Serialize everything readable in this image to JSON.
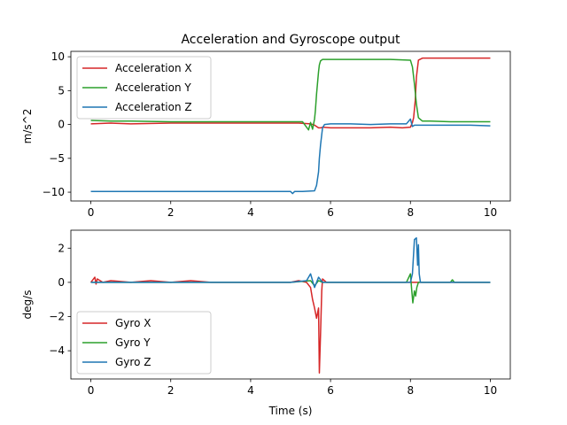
{
  "figure": {
    "title": "Acceleration and Gyroscope output",
    "xlabel": "Time (s)"
  },
  "chart_data": [
    {
      "type": "line",
      "title": "Acceleration and Gyroscope output",
      "xlabel": "",
      "ylabel": "m/s^2",
      "xlim": [
        -0.5,
        10.5
      ],
      "ylim": [
        -11.3,
        10.8
      ],
      "xticks": [
        0,
        2,
        4,
        6,
        8,
        10
      ],
      "yticks": [
        -10,
        -5,
        0,
        5,
        10
      ],
      "grid": false,
      "legend": "top-left",
      "series": [
        {
          "name": "Acceleration X",
          "color": "#d62728",
          "x": [
            0,
            0.5,
            1,
            2,
            3,
            4,
            4.5,
            5,
            5.2,
            5.5,
            5.6,
            5.65,
            5.7,
            5.75,
            5.8,
            6,
            6.5,
            7,
            7.5,
            7.8,
            8.0,
            8.05,
            8.08,
            8.12,
            8.15,
            8.2,
            8.3,
            8.5,
            9,
            9.5,
            10
          ],
          "y": [
            0.1,
            0.2,
            0.1,
            0.2,
            0.2,
            0.2,
            0.2,
            0.2,
            0.2,
            0.1,
            -0.1,
            -0.3,
            -0.5,
            -0.5,
            -0.4,
            -0.5,
            -0.5,
            -0.5,
            -0.4,
            -0.5,
            -0.4,
            0.3,
            1.0,
            3.5,
            7.0,
            9.5,
            9.8,
            9.8,
            9.8,
            9.8,
            9.8
          ]
        },
        {
          "name": "Acceleration Y",
          "color": "#2ca02c",
          "x": [
            0,
            0.5,
            1,
            2,
            3,
            4,
            4.5,
            5,
            5.3,
            5.45,
            5.5,
            5.55,
            5.6,
            5.62,
            5.65,
            5.68,
            5.7,
            5.72,
            5.75,
            5.8,
            6,
            6.5,
            7,
            7.5,
            8.0,
            8.05,
            8.1,
            8.15,
            8.2,
            8.3,
            8.5,
            9,
            9.5,
            10
          ],
          "y": [
            0.6,
            0.5,
            0.5,
            0.4,
            0.4,
            0.4,
            0.4,
            0.4,
            0.4,
            -0.8,
            0.3,
            -0.7,
            0.8,
            2.0,
            4.5,
            6.5,
            7.8,
            8.8,
            9.4,
            9.6,
            9.6,
            9.6,
            9.6,
            9.6,
            9.5,
            8.5,
            6.0,
            3.0,
            1.0,
            0.5,
            0.5,
            0.4,
            0.4,
            0.4
          ]
        },
        {
          "name": "Acceleration Z",
          "color": "#1f77b4",
          "x": [
            0,
            0.5,
            1,
            1.5,
            2,
            2.5,
            3,
            3.5,
            4,
            4.5,
            5,
            5.05,
            5.1,
            5.3,
            5.6,
            5.65,
            5.7,
            5.72,
            5.75,
            5.78,
            5.8,
            5.85,
            6,
            6.5,
            7,
            7.5,
            7.9,
            8.0,
            8.05,
            8.1,
            8.2,
            8.5,
            9,
            9.5,
            10
          ],
          "y": [
            -9.9,
            -9.9,
            -9.9,
            -9.9,
            -9.9,
            -9.9,
            -9.9,
            -9.9,
            -9.9,
            -9.9,
            -9.9,
            -10.2,
            -9.9,
            -9.9,
            -9.8,
            -9.0,
            -7.0,
            -5.0,
            -3.0,
            -1.5,
            -0.5,
            0.0,
            0.1,
            0.1,
            0.0,
            0.1,
            0.1,
            0.8,
            -0.3,
            -0.1,
            -0.1,
            -0.1,
            -0.1,
            -0.1,
            -0.2
          ]
        }
      ]
    },
    {
      "type": "line",
      "title": "",
      "xlabel": "Time (s)",
      "ylabel": "deg/s",
      "xlim": [
        -0.5,
        10.5
      ],
      "ylim": [
        -5.65,
        3.05
      ],
      "xticks": [
        0,
        2,
        4,
        6,
        8,
        10
      ],
      "yticks": [
        -4,
        -2,
        0,
        2
      ],
      "grid": false,
      "legend": "bottom-left",
      "series": [
        {
          "name": "Gyro X",
          "color": "#d62728",
          "x": [
            0,
            0.1,
            0.13,
            0.16,
            0.3,
            0.5,
            1,
            1.5,
            2,
            2.5,
            3,
            4,
            5,
            5.2,
            5.4,
            5.5,
            5.55,
            5.6,
            5.65,
            5.7,
            5.72,
            5.75,
            5.78,
            5.8,
            5.9,
            6,
            7,
            8,
            8.2,
            9,
            10
          ],
          "y": [
            0,
            0.3,
            -0.1,
            0.2,
            0,
            0.1,
            0,
            0.1,
            0,
            0.1,
            0,
            0,
            0,
            0.1,
            0,
            -0.3,
            -1.0,
            -1.5,
            -2.1,
            -1.5,
            -5.3,
            -3.0,
            -0.5,
            0.2,
            0,
            0,
            0,
            0,
            0,
            0,
            0
          ]
        },
        {
          "name": "Gyro Y",
          "color": "#2ca02c",
          "x": [
            0,
            1,
            2,
            3,
            4,
            5,
            5.5,
            5.6,
            5.7,
            5.8,
            6,
            7,
            7.9,
            8.0,
            8.03,
            8.06,
            8.1,
            8.13,
            8.16,
            8.2,
            8.3,
            8.5,
            9,
            9.05,
            9.1,
            10
          ],
          "y": [
            0,
            0,
            0,
            0,
            0,
            0,
            0.1,
            -0.2,
            0.1,
            0,
            0,
            0,
            0,
            0.5,
            -0.4,
            -1.2,
            -0.5,
            -0.8,
            -0.3,
            0,
            0,
            0,
            0,
            0.15,
            0,
            0
          ]
        },
        {
          "name": "Gyro Z",
          "color": "#1f77b4",
          "x": [
            0,
            1,
            2,
            3,
            4,
            5,
            5.4,
            5.5,
            5.6,
            5.7,
            5.8,
            6,
            7,
            7.9,
            8.0,
            8.05,
            8.1,
            8.15,
            8.18,
            8.2,
            8.22,
            8.25,
            8.3,
            8.5,
            9,
            10
          ],
          "y": [
            0,
            0,
            0,
            0,
            0,
            0,
            0.1,
            0.5,
            -0.3,
            0.3,
            0,
            0,
            0,
            0,
            0,
            0.5,
            2.5,
            2.6,
            1.0,
            2.2,
            0.5,
            0,
            0,
            0,
            0,
            0
          ]
        }
      ]
    }
  ]
}
